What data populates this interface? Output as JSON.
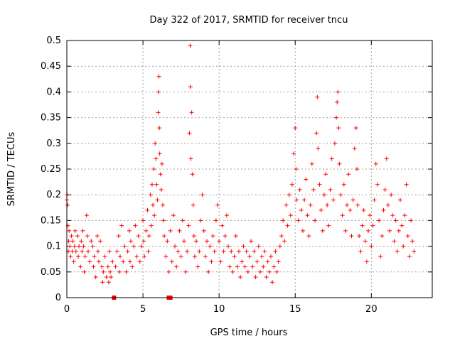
{
  "chart_data": {
    "type": "scatter",
    "title": "Day 322 of 2017, SRMTID for receiver tncu",
    "xlabel": "GPS time / hours",
    "ylabel": "SRMTID / TECUs",
    "xlim": [
      0,
      24
    ],
    "ylim": [
      0,
      0.5
    ],
    "x_ticks": [
      0,
      5,
      10,
      15,
      20
    ],
    "y_ticks": [
      0,
      0.05,
      0.1,
      0.15,
      0.2,
      0.25,
      0.3,
      0.35,
      0.4,
      0.45,
      0.5
    ],
    "x_tick_labels": [
      "0",
      "5",
      "10",
      "15",
      "20"
    ],
    "y_tick_labels": [
      "0",
      "0.05",
      "0.1",
      "0.15",
      "0.2",
      "0.25",
      "0.3",
      "0.35",
      "0.4",
      "0.45",
      "0.5"
    ],
    "grid": true,
    "marker": "plus",
    "color": "#ff0000",
    "axis_markers_x": [
      3.1,
      6.7,
      6.8
    ],
    "series": [
      {
        "values": [
          [
            0.0,
            0.19
          ],
          [
            0.02,
            0.2
          ],
          [
            0.05,
            0.18
          ],
          [
            0.08,
            0.14
          ],
          [
            0.1,
            0.09
          ],
          [
            0.12,
            0.11
          ],
          [
            0.15,
            0.13
          ],
          [
            0.2,
            0.1
          ],
          [
            0.25,
            0.08
          ],
          [
            0.3,
            0.12
          ],
          [
            0.35,
            0.09
          ],
          [
            0.4,
            0.11
          ],
          [
            0.45,
            0.07
          ],
          [
            0.5,
            0.1
          ],
          [
            0.55,
            0.13
          ],
          [
            0.6,
            0.09
          ],
          [
            0.7,
            0.12
          ],
          [
            0.75,
            0.08
          ],
          [
            0.8,
            0.1
          ],
          [
            0.9,
            0.06
          ],
          [
            0.95,
            0.11
          ],
          [
            1.0,
            0.09
          ],
          [
            1.05,
            0.13
          ],
          [
            1.1,
            0.1
          ],
          [
            1.15,
            0.05
          ],
          [
            1.2,
            0.08
          ],
          [
            1.3,
            0.16
          ],
          [
            1.35,
            0.12
          ],
          [
            1.4,
            0.09
          ],
          [
            1.5,
            0.07
          ],
          [
            1.6,
            0.11
          ],
          [
            1.7,
            0.1
          ],
          [
            1.75,
            0.06
          ],
          [
            1.8,
            0.08
          ],
          [
            1.9,
            0.04
          ],
          [
            2.0,
            0.12
          ],
          [
            2.05,
            0.09
          ],
          [
            2.1,
            0.07
          ],
          [
            2.2,
            0.11
          ],
          [
            2.3,
            0.06
          ],
          [
            2.35,
            0.03
          ],
          [
            2.4,
            0.05
          ],
          [
            2.5,
            0.08
          ],
          [
            2.6,
            0.04
          ],
          [
            2.7,
            0.06
          ],
          [
            2.75,
            0.03
          ],
          [
            2.8,
            0.09
          ],
          [
            2.85,
            0.05
          ],
          [
            2.9,
            0.04
          ],
          [
            3.0,
            0.07
          ],
          [
            3.2,
            0.06
          ],
          [
            3.3,
            0.09
          ],
          [
            3.4,
            0.12
          ],
          [
            3.45,
            0.05
          ],
          [
            3.5,
            0.08
          ],
          [
            3.6,
            0.14
          ],
          [
            3.7,
            0.07
          ],
          [
            3.8,
            0.1
          ],
          [
            3.9,
            0.05
          ],
          [
            4.0,
            0.09
          ],
          [
            4.1,
            0.13
          ],
          [
            4.15,
            0.07
          ],
          [
            4.2,
            0.11
          ],
          [
            4.3,
            0.06
          ],
          [
            4.4,
            0.1
          ],
          [
            4.5,
            0.14
          ],
          [
            4.6,
            0.08
          ],
          [
            4.7,
            0.12
          ],
          [
            4.8,
            0.07
          ],
          [
            4.9,
            0.1
          ],
          [
            5.0,
            0.15
          ],
          [
            5.05,
            0.11
          ],
          [
            5.1,
            0.08
          ],
          [
            5.2,
            0.13
          ],
          [
            5.3,
            0.17
          ],
          [
            5.35,
            0.09
          ],
          [
            5.4,
            0.12
          ],
          [
            5.5,
            0.2
          ],
          [
            5.55,
            0.14
          ],
          [
            5.6,
            0.22
          ],
          [
            5.65,
            0.18
          ],
          [
            5.7,
            0.25
          ],
          [
            5.75,
            0.16
          ],
          [
            5.8,
            0.3
          ],
          [
            5.85,
            0.27
          ],
          [
            5.9,
            0.22
          ],
          [
            5.95,
            0.19
          ],
          [
            6.0,
            0.36
          ],
          [
            6.02,
            0.4
          ],
          [
            6.05,
            0.43
          ],
          [
            6.08,
            0.33
          ],
          [
            6.1,
            0.28
          ],
          [
            6.15,
            0.24
          ],
          [
            6.2,
            0.21
          ],
          [
            6.25,
            0.26
          ],
          [
            6.3,
            0.18
          ],
          [
            6.35,
            0.15
          ],
          [
            6.4,
            0.12
          ],
          [
            6.5,
            0.08
          ],
          [
            6.6,
            0.11
          ],
          [
            6.7,
            0.05
          ],
          [
            6.8,
            0.13
          ],
          [
            6.9,
            0.07
          ],
          [
            7.0,
            0.16
          ],
          [
            7.1,
            0.1
          ],
          [
            7.2,
            0.06
          ],
          [
            7.3,
            0.09
          ],
          [
            7.4,
            0.13
          ],
          [
            7.5,
            0.08
          ],
          [
            7.6,
            0.15
          ],
          [
            7.7,
            0.11
          ],
          [
            7.8,
            0.05
          ],
          [
            7.9,
            0.09
          ],
          [
            8.0,
            0.14
          ],
          [
            8.05,
            0.32
          ],
          [
            8.1,
            0.49
          ],
          [
            8.12,
            0.41
          ],
          [
            8.15,
            0.27
          ],
          [
            8.2,
            0.36
          ],
          [
            8.25,
            0.24
          ],
          [
            8.3,
            0.18
          ],
          [
            8.35,
            0.12
          ],
          [
            8.4,
            0.08
          ],
          [
            8.5,
            0.11
          ],
          [
            8.6,
            0.06
          ],
          [
            8.7,
            0.09
          ],
          [
            8.8,
            0.15
          ],
          [
            8.9,
            0.2
          ],
          [
            9.0,
            0.13
          ],
          [
            9.1,
            0.08
          ],
          [
            9.2,
            0.11
          ],
          [
            9.3,
            0.05
          ],
          [
            9.4,
            0.1
          ],
          [
            9.5,
            0.07
          ],
          [
            9.6,
            0.12
          ],
          [
            9.7,
            0.09
          ],
          [
            9.8,
            0.15
          ],
          [
            9.9,
            0.18
          ],
          [
            10.0,
            0.11
          ],
          [
            10.1,
            0.07
          ],
          [
            10.2,
            0.14
          ],
          [
            10.3,
            0.09
          ],
          [
            10.4,
            0.12
          ],
          [
            10.5,
            0.16
          ],
          [
            10.6,
            0.1
          ],
          [
            10.7,
            0.06
          ],
          [
            10.8,
            0.09
          ],
          [
            10.9,
            0.05
          ],
          [
            11.0,
            0.08
          ],
          [
            11.1,
            0.12
          ],
          [
            11.2,
            0.06
          ],
          [
            11.3,
            0.09
          ],
          [
            11.4,
            0.04
          ],
          [
            11.5,
            0.07
          ],
          [
            11.6,
            0.1
          ],
          [
            11.7,
            0.06
          ],
          [
            11.8,
            0.09
          ],
          [
            11.9,
            0.05
          ],
          [
            12.0,
            0.08
          ],
          [
            12.1,
            0.11
          ],
          [
            12.2,
            0.06
          ],
          [
            12.3,
            0.09
          ],
          [
            12.4,
            0.04
          ],
          [
            12.5,
            0.07
          ],
          [
            12.6,
            0.1
          ],
          [
            12.7,
            0.05
          ],
          [
            12.8,
            0.08
          ],
          [
            12.9,
            0.06
          ],
          [
            13.0,
            0.09
          ],
          [
            13.1,
            0.04
          ],
          [
            13.2,
            0.07
          ],
          [
            13.3,
            0.05
          ],
          [
            13.4,
            0.08
          ],
          [
            13.5,
            0.03
          ],
          [
            13.6,
            0.06
          ],
          [
            13.7,
            0.09
          ],
          [
            13.8,
            0.05
          ],
          [
            13.9,
            0.07
          ],
          [
            14.0,
            0.1
          ],
          [
            14.1,
            0.12
          ],
          [
            14.2,
            0.15
          ],
          [
            14.3,
            0.11
          ],
          [
            14.4,
            0.18
          ],
          [
            14.5,
            0.14
          ],
          [
            14.6,
            0.2
          ],
          [
            14.7,
            0.16
          ],
          [
            14.8,
            0.22
          ],
          [
            14.9,
            0.28
          ],
          [
            15.0,
            0.33
          ],
          [
            15.05,
            0.25
          ],
          [
            15.1,
            0.19
          ],
          [
            15.2,
            0.15
          ],
          [
            15.3,
            0.21
          ],
          [
            15.4,
            0.17
          ],
          [
            15.5,
            0.13
          ],
          [
            15.6,
            0.19
          ],
          [
            15.7,
            0.23
          ],
          [
            15.8,
            0.16
          ],
          [
            15.9,
            0.12
          ],
          [
            16.0,
            0.18
          ],
          [
            16.1,
            0.26
          ],
          [
            16.2,
            0.21
          ],
          [
            16.3,
            0.15
          ],
          [
            16.4,
            0.32
          ],
          [
            16.45,
            0.39
          ],
          [
            16.5,
            0.29
          ],
          [
            16.6,
            0.22
          ],
          [
            16.7,
            0.17
          ],
          [
            16.8,
            0.13
          ],
          [
            16.9,
            0.2
          ],
          [
            17.0,
            0.24
          ],
          [
            17.1,
            0.18
          ],
          [
            17.2,
            0.14
          ],
          [
            17.3,
            0.21
          ],
          [
            17.4,
            0.27
          ],
          [
            17.5,
            0.19
          ],
          [
            17.6,
            0.3
          ],
          [
            17.7,
            0.35
          ],
          [
            17.75,
            0.38
          ],
          [
            17.8,
            0.4
          ],
          [
            17.85,
            0.33
          ],
          [
            17.9,
            0.26
          ],
          [
            18.0,
            0.2
          ],
          [
            18.1,
            0.16
          ],
          [
            18.2,
            0.22
          ],
          [
            18.3,
            0.13
          ],
          [
            18.4,
            0.18
          ],
          [
            18.5,
            0.24
          ],
          [
            18.6,
            0.17
          ],
          [
            18.7,
            0.12
          ],
          [
            18.8,
            0.19
          ],
          [
            18.9,
            0.29
          ],
          [
            19.0,
            0.33
          ],
          [
            19.05,
            0.25
          ],
          [
            19.1,
            0.18
          ],
          [
            19.2,
            0.12
          ],
          [
            19.3,
            0.09
          ],
          [
            19.4,
            0.14
          ],
          [
            19.5,
            0.17
          ],
          [
            19.6,
            0.11
          ],
          [
            19.7,
            0.07
          ],
          [
            19.8,
            0.13
          ],
          [
            19.9,
            0.16
          ],
          [
            20.0,
            0.1
          ],
          [
            20.1,
            0.14
          ],
          [
            20.2,
            0.19
          ],
          [
            20.3,
            0.26
          ],
          [
            20.4,
            0.22
          ],
          [
            20.5,
            0.15
          ],
          [
            20.6,
            0.08
          ],
          [
            20.7,
            0.12
          ],
          [
            20.8,
            0.17
          ],
          [
            20.9,
            0.21
          ],
          [
            21.0,
            0.27
          ],
          [
            21.1,
            0.18
          ],
          [
            21.2,
            0.13
          ],
          [
            21.3,
            0.2
          ],
          [
            21.4,
            0.16
          ],
          [
            21.5,
            0.11
          ],
          [
            21.6,
            0.15
          ],
          [
            21.7,
            0.09
          ],
          [
            21.8,
            0.13
          ],
          [
            21.9,
            0.19
          ],
          [
            22.0,
            0.14
          ],
          [
            22.1,
            0.1
          ],
          [
            22.2,
            0.16
          ],
          [
            22.3,
            0.22
          ],
          [
            22.4,
            0.12
          ],
          [
            22.5,
            0.08
          ],
          [
            22.6,
            0.15
          ],
          [
            22.7,
            0.11
          ],
          [
            22.8,
            0.09
          ]
        ]
      }
    ]
  }
}
